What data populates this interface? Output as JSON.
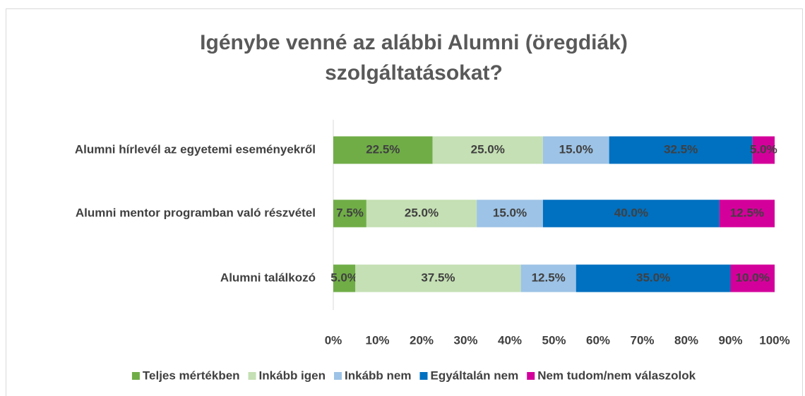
{
  "chart_data": {
    "type": "stacked_barh",
    "title": [
      "Igénybe venné az alábbi Alumni (öregdiák)",
      "szolgáltatásokat?"
    ],
    "categories": [
      "Alumni hírlevél az egyetemi eseményekről",
      "Alumni mentor programban való részvétel",
      "Alumni találkozó"
    ],
    "series": [
      {
        "name": "Teljes mértékben",
        "color": "#70ad47",
        "values": [
          22.5,
          7.5,
          5.0
        ],
        "value_labels": [
          "22.5%",
          "7.5%",
          "5.0%"
        ]
      },
      {
        "name": "Inkább igen",
        "color": "#c5e0b4",
        "values": [
          25.0,
          25.0,
          37.5
        ],
        "value_labels": [
          "25.0%",
          "25.0%",
          "37.5%"
        ]
      },
      {
        "name": "Inkább nem",
        "color": "#9dc3e6",
        "values": [
          15.0,
          15.0,
          12.5
        ],
        "value_labels": [
          "15.0%",
          "15.0%",
          "12.5%"
        ]
      },
      {
        "name": "Egyáltalán nem",
        "color": "#0070c0",
        "values": [
          32.5,
          40.0,
          35.0
        ],
        "value_labels": [
          "32.5%",
          "40.0%",
          "35.0%"
        ]
      },
      {
        "name": "Nem tudom/nem válaszolok",
        "color": "#d4009b",
        "values": [
          5.0,
          12.5,
          10.0
        ],
        "value_labels": [
          "5.0%",
          "12.5%",
          "10.0%"
        ]
      }
    ],
    "xlim": [
      0,
      100
    ],
    "xticks": [
      {
        "value": 0,
        "label": "0%"
      },
      {
        "value": 10,
        "label": "10%"
      },
      {
        "value": 20,
        "label": "20%"
      },
      {
        "value": 30,
        "label": "30%"
      },
      {
        "value": 40,
        "label": "40%"
      },
      {
        "value": 50,
        "label": "50%"
      },
      {
        "value": 60,
        "label": "60%"
      },
      {
        "value": 70,
        "label": "70%"
      },
      {
        "value": 80,
        "label": "80%"
      },
      {
        "value": 90,
        "label": "90%"
      },
      {
        "value": 100,
        "label": "100%"
      }
    ],
    "legend": "bottom"
  }
}
